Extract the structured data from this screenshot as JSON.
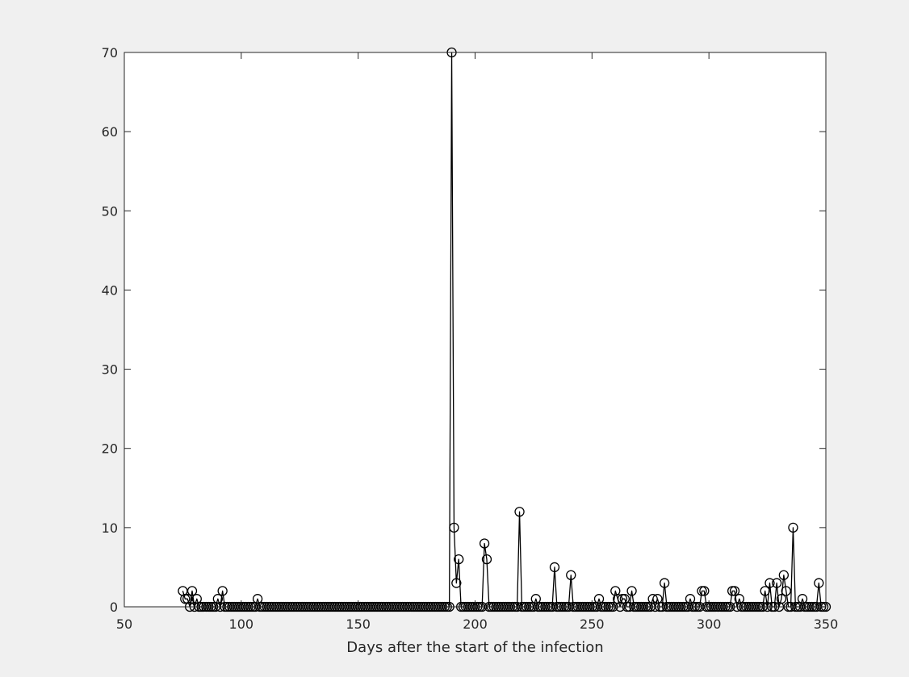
{
  "chart_data": {
    "type": "line",
    "title": "",
    "xlabel": "Days after the start of the infection",
    "ylabel": "",
    "xlim": [
      50,
      350
    ],
    "ylim": [
      0,
      70
    ],
    "xticks": [
      50,
      100,
      150,
      200,
      250,
      300,
      350
    ],
    "yticks": [
      0,
      10,
      20,
      30,
      40,
      50,
      60,
      70
    ],
    "xtick_labels": [
      "50",
      "100",
      "150",
      "200",
      "250",
      "300",
      "350"
    ],
    "ytick_labels": [
      "0",
      "10",
      "20",
      "30",
      "40",
      "50",
      "60",
      "70"
    ],
    "grid": false,
    "box": true,
    "marker": "circle",
    "color": "#000000",
    "series": [
      {
        "name": "",
        "x": [
          75,
          76,
          77,
          78,
          79,
          80,
          81,
          82,
          83,
          84,
          85,
          86,
          87,
          88,
          89,
          90,
          91,
          92,
          93,
          94,
          95,
          96,
          97,
          98,
          99,
          100,
          101,
          102,
          103,
          104,
          105,
          106,
          107,
          108,
          109,
          110,
          111,
          112,
          113,
          114,
          115,
          116,
          117,
          118,
          119,
          120,
          121,
          122,
          123,
          124,
          125,
          126,
          127,
          128,
          129,
          130,
          131,
          132,
          133,
          134,
          135,
          136,
          137,
          138,
          139,
          140,
          141,
          142,
          143,
          144,
          145,
          146,
          147,
          148,
          149,
          150,
          151,
          152,
          153,
          154,
          155,
          156,
          157,
          158,
          159,
          160,
          161,
          162,
          163,
          164,
          165,
          166,
          167,
          168,
          169,
          170,
          171,
          172,
          173,
          174,
          175,
          176,
          177,
          178,
          179,
          180,
          181,
          182,
          183,
          184,
          185,
          186,
          187,
          188,
          189,
          190,
          191,
          192,
          193,
          194,
          195,
          196,
          197,
          198,
          199,
          200,
          201,
          202,
          203,
          204,
          205,
          206,
          207,
          208,
          209,
          210,
          211,
          212,
          213,
          214,
          215,
          216,
          217,
          218,
          219,
          220,
          221,
          222,
          223,
          224,
          225,
          226,
          227,
          228,
          229,
          230,
          231,
          232,
          233,
          234,
          235,
          236,
          237,
          238,
          239,
          240,
          241,
          242,
          243,
          244,
          245,
          246,
          247,
          248,
          249,
          250,
          251,
          252,
          253,
          254,
          255,
          256,
          257,
          258,
          259,
          260,
          261,
          262,
          263,
          264,
          265,
          266,
          267,
          268,
          269,
          270,
          271,
          272,
          273,
          274,
          275,
          276,
          277,
          278,
          279,
          280,
          281,
          282,
          283,
          284,
          285,
          286,
          287,
          288,
          289,
          290,
          291,
          292,
          293,
          294,
          295,
          296,
          297,
          298,
          299,
          300,
          301,
          302,
          303,
          304,
          305,
          306,
          307,
          308,
          309,
          310,
          311,
          312,
          313,
          314,
          315,
          316,
          317,
          318,
          319,
          320,
          321,
          322,
          323,
          324,
          325,
          326,
          327,
          328,
          329,
          330,
          331,
          332,
          333,
          334,
          335,
          336,
          337,
          338,
          339,
          340,
          341,
          342,
          343,
          344,
          345,
          346,
          347,
          348,
          349,
          350
        ],
        "y": [
          2,
          1,
          1,
          0,
          2,
          0,
          1,
          0,
          0,
          0,
          0,
          0,
          0,
          0,
          0,
          1,
          0,
          2,
          0,
          0,
          0,
          0,
          0,
          0,
          0,
          0,
          0,
          0,
          0,
          0,
          0,
          0,
          1,
          0,
          0,
          0,
          0,
          0,
          0,
          0,
          0,
          0,
          0,
          0,
          0,
          0,
          0,
          0,
          0,
          0,
          0,
          0,
          0,
          0,
          0,
          0,
          0,
          0,
          0,
          0,
          0,
          0,
          0,
          0,
          0,
          0,
          0,
          0,
          0,
          0,
          0,
          0,
          0,
          0,
          0,
          0,
          0,
          0,
          0,
          0,
          0,
          0,
          0,
          0,
          0,
          0,
          0,
          0,
          0,
          0,
          0,
          0,
          0,
          0,
          0,
          0,
          0,
          0,
          0,
          0,
          0,
          0,
          0,
          0,
          0,
          0,
          0,
          0,
          0,
          0,
          0,
          0,
          0,
          0,
          0,
          70,
          10,
          3,
          6,
          0,
          0,
          0,
          0,
          0,
          0,
          0,
          0,
          0,
          0,
          8,
          6,
          0,
          0,
          0,
          0,
          0,
          0,
          0,
          0,
          0,
          0,
          0,
          0,
          0,
          12,
          0,
          0,
          0,
          0,
          0,
          0,
          1,
          0,
          0,
          0,
          0,
          0,
          0,
          0,
          5,
          0,
          0,
          0,
          0,
          0,
          0,
          4,
          0,
          0,
          0,
          0,
          0,
          0,
          0,
          0,
          0,
          0,
          0,
          1,
          0,
          0,
          0,
          0,
          0,
          0,
          2,
          1,
          0,
          1,
          1,
          0,
          0,
          2,
          0,
          0,
          0,
          0,
          0,
          0,
          0,
          0,
          1,
          0,
          1,
          0,
          0,
          3,
          0,
          0,
          0,
          0,
          0,
          0,
          0,
          0,
          0,
          0,
          1,
          0,
          0,
          0,
          0,
          2,
          2,
          0,
          0,
          0,
          0,
          0,
          0,
          0,
          0,
          0,
          0,
          0,
          2,
          2,
          0,
          1,
          0,
          0,
          0,
          0,
          0,
          0,
          0,
          0,
          0,
          0,
          2,
          0,
          3,
          0,
          0,
          3,
          0,
          1,
          4,
          2,
          0,
          0,
          10,
          0,
          0,
          0,
          1,
          0,
          0,
          0,
          0,
          0,
          0,
          3,
          0,
          0,
          0
        ]
      }
    ]
  }
}
